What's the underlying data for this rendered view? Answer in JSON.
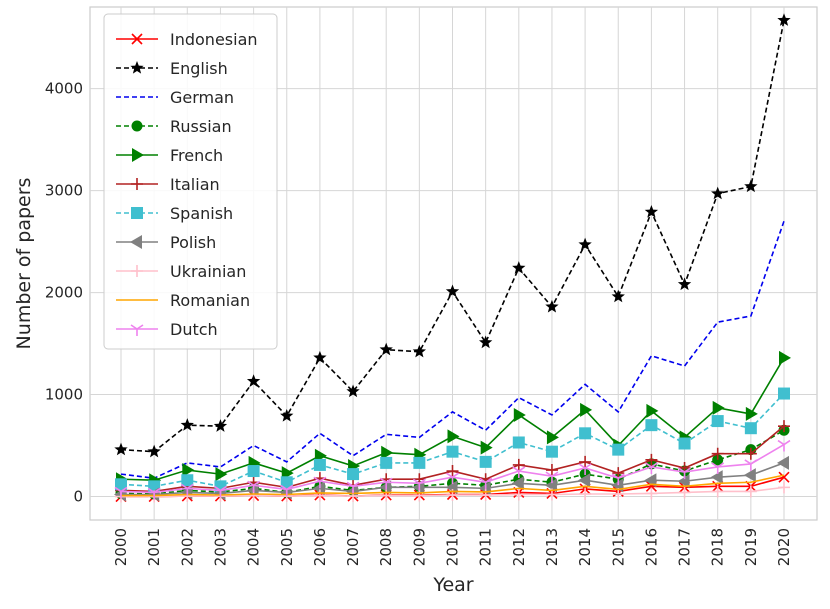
{
  "chart_data": {
    "type": "line",
    "title": "",
    "xlabel": "Year",
    "ylabel": "Number of papers",
    "x": [
      "2000",
      "2001",
      "2002",
      "2003",
      "2004",
      "2005",
      "2006",
      "2007",
      "2008",
      "2009",
      "2010",
      "2011",
      "2012",
      "2013",
      "2014",
      "2015",
      "2016",
      "2017",
      "2018",
      "2019",
      "2020"
    ],
    "xlim": [
      2000,
      2020
    ],
    "ylim": [
      -230,
      4800
    ],
    "yticks": [
      0,
      1000,
      2000,
      3000,
      4000
    ],
    "ytick_labels": [
      "0",
      "1000",
      "2000",
      "3000",
      "4000"
    ],
    "grid": true,
    "legend_position": "upper-left",
    "series": [
      {
        "name": "Indonesian",
        "color": "#ff0000",
        "linestyle": "solid",
        "marker": "x",
        "values": [
          0,
          0,
          5,
          5,
          10,
          5,
          15,
          5,
          15,
          15,
          20,
          20,
          40,
          30,
          75,
          50,
          100,
          90,
          100,
          100,
          190
        ]
      },
      {
        "name": "English",
        "color": "#000000",
        "linestyle": "dashed",
        "marker": "star",
        "values": [
          460,
          440,
          700,
          690,
          1130,
          790,
          1360,
          1030,
          1440,
          1420,
          2010,
          1510,
          2240,
          1860,
          2470,
          1960,
          2790,
          2080,
          2970,
          3040,
          4670
        ]
      },
      {
        "name": "German",
        "color": "#0000ee",
        "linestyle": "dashed",
        "marker": "none",
        "values": [
          220,
          180,
          330,
          290,
          500,
          340,
          620,
          400,
          610,
          580,
          830,
          650,
          970,
          800,
          1100,
          830,
          1380,
          1280,
          1710,
          1770,
          2700
        ]
      },
      {
        "name": "Russian",
        "color": "#008000",
        "linestyle": "dashed",
        "marker": "circle",
        "values": [
          30,
          25,
          60,
          45,
          80,
          40,
          100,
          60,
          90,
          100,
          130,
          110,
          170,
          140,
          220,
          170,
          320,
          250,
          360,
          460,
          650
        ]
      },
      {
        "name": "French",
        "color": "#008000",
        "linestyle": "solid",
        "marker": "triangle-right",
        "values": [
          170,
          160,
          260,
          220,
          330,
          230,
          400,
          300,
          430,
          410,
          590,
          480,
          800,
          580,
          850,
          500,
          840,
          580,
          870,
          810,
          1360
        ]
      },
      {
        "name": "Italian",
        "color": "#b22222",
        "linestyle": "solid",
        "marker": "plus",
        "values": [
          60,
          50,
          100,
          80,
          140,
          90,
          180,
          110,
          170,
          170,
          250,
          170,
          310,
          260,
          340,
          230,
          360,
          280,
          420,
          420,
          690
        ]
      },
      {
        "name": "Spanish",
        "color": "#40bfcf",
        "linestyle": "dashed",
        "marker": "square",
        "values": [
          120,
          100,
          160,
          100,
          250,
          140,
          310,
          220,
          330,
          330,
          440,
          340,
          530,
          440,
          620,
          460,
          700,
          520,
          740,
          670,
          1010
        ]
      },
      {
        "name": "Polish",
        "color": "#808080",
        "linestyle": "solid",
        "marker": "triangle-left",
        "values": [
          20,
          20,
          40,
          30,
          60,
          40,
          80,
          50,
          90,
          90,
          90,
          80,
          130,
          110,
          160,
          110,
          160,
          150,
          190,
          210,
          330
        ]
      },
      {
        "name": "Ukrainian",
        "color": "#ffc0cb",
        "linestyle": "solid",
        "marker": "plus",
        "values": [
          0,
          0,
          5,
          5,
          10,
          5,
          10,
          5,
          10,
          10,
          15,
          15,
          20,
          20,
          25,
          25,
          30,
          40,
          50,
          50,
          90
        ]
      },
      {
        "name": "Romanian",
        "color": "#ffa500",
        "linestyle": "solid",
        "marker": "none",
        "values": [
          10,
          10,
          20,
          15,
          25,
          20,
          35,
          30,
          40,
          35,
          50,
          45,
          80,
          60,
          100,
          70,
          120,
          100,
          130,
          140,
          210
        ]
      },
      {
        "name": "Dutch",
        "color": "#ee82ee",
        "linestyle": "solid",
        "marker": "tri-down",
        "values": [
          50,
          40,
          80,
          60,
          110,
          70,
          150,
          100,
          140,
          130,
          190,
          140,
          250,
          200,
          280,
          180,
          290,
          240,
          290,
          320,
          510
        ]
      }
    ]
  }
}
